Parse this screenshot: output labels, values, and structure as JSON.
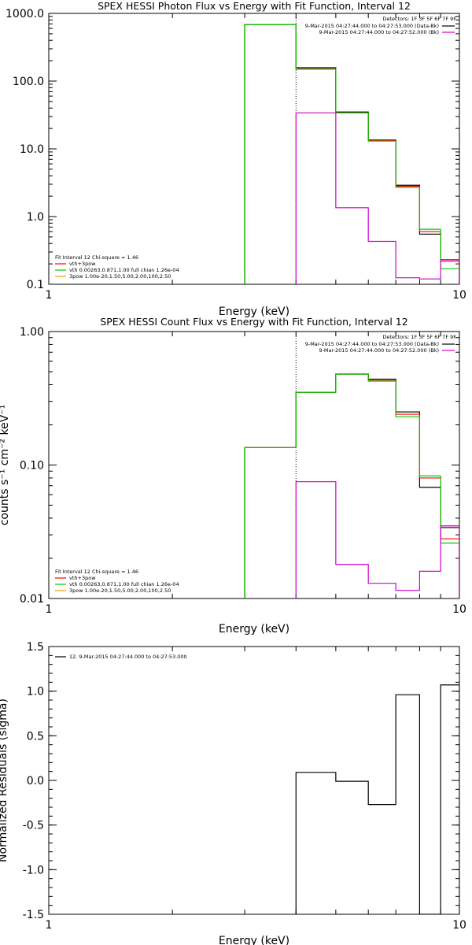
{
  "chart_data": [
    {
      "type": "line",
      "title": "SPEX HESSI Photon Flux vs Energy with Fit Function, Interval 12",
      "xlabel": "Energy (keV)",
      "ylabel": "",
      "x_scale": "log",
      "y_scale": "log",
      "xlim": [
        1,
        10
      ],
      "ylim": [
        0.1,
        1000
      ],
      "x_ticks": [
        "1",
        "10"
      ],
      "y_ticks": [
        {
          "value": 0.1,
          "label": "0.1"
        },
        {
          "value": 1,
          "label": "1.0"
        },
        {
          "value": 10,
          "label": "10.0"
        },
        {
          "value": 100,
          "label": "100.0"
        },
        {
          "value": 1000,
          "label": "1000.0"
        }
      ],
      "vline_x": 4.0,
      "info": {
        "detectors": "Detectors: 1F 3F 5F 6F 7F 9F",
        "lines": [
          {
            "text": "9-Mar-2015 04:27:44.000 to 04:27:53.000 (Data-Bk)",
            "color": "#000000"
          },
          {
            "text": "9-Mar-2015 04:27:44.000 to 04:27:52.000 (Bk)",
            "color": "#cc00cc"
          }
        ]
      },
      "legend": [
        {
          "text": "Fit Interval 12   Chi-square = 1.46",
          "color": ""
        },
        {
          "text": "vth+3pow",
          "color": "#ff0000"
        },
        {
          "text": "vth 0.00263,0.871,1.00  full chian 1.26e-04",
          "color": "#00cc00"
        },
        {
          "text": "3pow 1.00e-20,1.50,5.00,2.00,100,2.50",
          "color": "#ff9900"
        }
      ],
      "edges": [
        3.0,
        4.0,
        5.0,
        6.0,
        7.0,
        8.0,
        9.0,
        10.0
      ],
      "series": [
        {
          "name": "Data-Bk",
          "color": "#000000",
          "values": [
            680,
            158,
            35,
            13.5,
            2.9,
            0.55,
            0.23
          ]
        },
        {
          "name": "",
          "color": "#ff0000",
          "values": [
            680,
            152,
            34,
            13.2,
            2.8,
            0.6,
            0.22
          ]
        },
        {
          "name": "",
          "color": "#00cc00",
          "values": [
            680,
            150,
            34,
            13,
            2.7,
            0.65,
            0.17
          ]
        },
        {
          "name": "Bk",
          "color": "#cc00cc",
          "values": [
            null,
            34,
            1.35,
            0.43,
            0.125,
            0.12,
            0.23
          ]
        }
      ]
    },
    {
      "type": "line",
      "title": "SPEX HESSI Count Flux vs Energy with Fit Function, Interval 12",
      "xlabel": "Energy (keV)",
      "ylabel": "counts s⁻¹ cm⁻² keV⁻¹",
      "x_scale": "log",
      "y_scale": "log",
      "xlim": [
        1,
        10
      ],
      "ylim": [
        0.01,
        1
      ],
      "x_ticks": [
        "1",
        "10"
      ],
      "y_ticks": [
        {
          "value": 0.01,
          "label": "0.01"
        },
        {
          "value": 0.1,
          "label": "0.10"
        },
        {
          "value": 1,
          "label": "1.00"
        }
      ],
      "vline_x": 4.0,
      "info": {
        "detectors": "Detectors: 1F 3F 5F 6F 7F 9F",
        "lines": [
          {
            "text": "9-Mar-2015 04:27:44.000 to 04:27:53.000 (Data-Bk)",
            "color": "#000000"
          },
          {
            "text": "9-Mar-2015 04:27:44.000 to 04:27:52.000 (Bk)",
            "color": "#cc00cc"
          }
        ]
      },
      "legend": [
        {
          "text": "Fit Interval 12   Chi-square = 1.46",
          "color": ""
        },
        {
          "text": "vth+3pow",
          "color": "#ff0000"
        },
        {
          "text": "vth 0.00263,0.871,1.00  full chian 1.26e-04",
          "color": "#00cc00"
        },
        {
          "text": "3pow 1.00e-20,1.50,5.00,2.00,100,2.50",
          "color": "#ff9900"
        }
      ],
      "edges": [
        3.0,
        4.0,
        5.0,
        6.0,
        7.0,
        8.0,
        9.0,
        10.0
      ],
      "series": [
        {
          "name": "Data-Bk",
          "color": "#000000",
          "values": [
            0.135,
            0.35,
            0.48,
            0.44,
            0.25,
            0.068,
            0.034
          ]
        },
        {
          "name": "",
          "color": "#ff0000",
          "values": [
            0.135,
            0.35,
            0.48,
            0.43,
            0.24,
            0.08,
            0.028
          ]
        },
        {
          "name": "",
          "color": "#00cc00",
          "values": [
            0.135,
            0.35,
            0.48,
            0.425,
            0.23,
            0.083,
            0.026
          ]
        },
        {
          "name": "Bk",
          "color": "#cc00cc",
          "values": [
            null,
            0.075,
            0.018,
            0.013,
            0.0115,
            0.016,
            0.035
          ]
        }
      ]
    },
    {
      "type": "line",
      "title": "",
      "xlabel": "Energy (keV)",
      "ylabel": "Normalized Residuals (sigma)",
      "x_scale": "log",
      "y_scale": "linear",
      "xlim": [
        1,
        10
      ],
      "ylim": [
        -1.5,
        1.5
      ],
      "x_ticks": [
        "1",
        "10"
      ],
      "y_ticks": [
        {
          "value": -1.5,
          "label": "-1.5"
        },
        {
          "value": -1.0,
          "label": "-1.0"
        },
        {
          "value": -0.5,
          "label": "-0.5"
        },
        {
          "value": 0.0,
          "label": "0.0"
        },
        {
          "value": 0.5,
          "label": "0.5"
        },
        {
          "value": 1.0,
          "label": "1.0"
        },
        {
          "value": 1.5,
          "label": "1.5"
        }
      ],
      "legend": [
        {
          "text": "12.  9-Mar-2015 04:27:44.000 to 04:27:53.000",
          "color": "#000000"
        }
      ],
      "edges": [
        4.0,
        5.0,
        6.0,
        7.0,
        8.0,
        9.0,
        10.0
      ],
      "series": [
        {
          "name": "",
          "color": "#000000",
          "values": [
            0.09,
            -0.01,
            -0.27,
            0.96,
            -1.5,
            1.07
          ]
        }
      ]
    }
  ]
}
